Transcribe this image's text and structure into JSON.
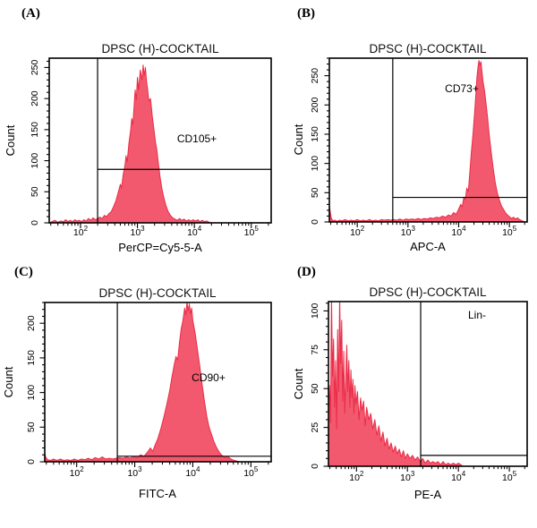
{
  "figure": {
    "background": "#ffffff"
  },
  "chart_data": [
    {
      "type": "area",
      "panel_label": "(A)",
      "title": "DPSC (H)-COCKTAIL",
      "xlabel": "PerCP=Cy5-5-A",
      "ylabel": "Count",
      "xscale": "log",
      "xlim_log10": [
        1.45,
        5.35
      ],
      "xticks_exponents": [
        2,
        3,
        4,
        5
      ],
      "ylim": [
        0,
        265
      ],
      "yticks": [
        0,
        50,
        100,
        150,
        200,
        250
      ],
      "y_minor_step": 10,
      "grid": false,
      "fill_color": "#f2596e",
      "line_color": "#ea2c47",
      "gate": {
        "label": "CD105+",
        "x_log10": 2.3,
        "y_count": 86,
        "label_log10": 4.05,
        "label_count": 130
      },
      "points": [
        [
          1.45,
          0
        ],
        [
          1.5,
          2
        ],
        [
          1.55,
          4
        ],
        [
          1.6,
          1
        ],
        [
          1.65,
          3
        ],
        [
          1.7,
          2
        ],
        [
          1.74,
          5
        ],
        [
          1.78,
          2
        ],
        [
          1.82,
          4
        ],
        [
          1.86,
          2
        ],
        [
          1.9,
          5
        ],
        [
          1.94,
          3
        ],
        [
          1.98,
          4
        ],
        [
          2.02,
          2
        ],
        [
          2.06,
          5
        ],
        [
          2.1,
          3
        ],
        [
          2.14,
          7
        ],
        [
          2.18,
          4
        ],
        [
          2.22,
          8
        ],
        [
          2.26,
          5
        ],
        [
          2.3,
          7
        ],
        [
          2.34,
          9
        ],
        [
          2.38,
          7
        ],
        [
          2.42,
          12
        ],
        [
          2.46,
          10
        ],
        [
          2.5,
          15
        ],
        [
          2.54,
          18
        ],
        [
          2.58,
          26
        ],
        [
          2.62,
          35
        ],
        [
          2.66,
          48
        ],
        [
          2.7,
          62
        ],
        [
          2.72,
          56
        ],
        [
          2.75,
          78
        ],
        [
          2.78,
          92
        ],
        [
          2.8,
          108
        ],
        [
          2.82,
          98
        ],
        [
          2.85,
          128
        ],
        [
          2.88,
          148
        ],
        [
          2.9,
          168
        ],
        [
          2.92,
          158
        ],
        [
          2.94,
          186
        ],
        [
          2.96,
          214
        ],
        [
          2.98,
          198
        ],
        [
          3.0,
          234
        ],
        [
          3.02,
          214
        ],
        [
          3.05,
          246
        ],
        [
          3.08,
          230
        ],
        [
          3.1,
          254
        ],
        [
          3.12,
          237
        ],
        [
          3.14,
          250
        ],
        [
          3.16,
          228
        ],
        [
          3.18,
          214
        ],
        [
          3.2,
          196
        ],
        [
          3.23,
          200
        ],
        [
          3.26,
          172
        ],
        [
          3.29,
          150
        ],
        [
          3.32,
          128
        ],
        [
          3.34,
          118
        ],
        [
          3.37,
          94
        ],
        [
          3.4,
          72
        ],
        [
          3.43,
          55
        ],
        [
          3.46,
          42
        ],
        [
          3.5,
          28
        ],
        [
          3.54,
          18
        ],
        [
          3.58,
          12
        ],
        [
          3.62,
          8
        ],
        [
          3.66,
          6
        ],
        [
          3.7,
          4
        ],
        [
          3.74,
          7
        ],
        [
          3.78,
          4
        ],
        [
          3.82,
          6
        ],
        [
          3.86,
          3
        ],
        [
          3.9,
          5
        ],
        [
          3.94,
          3
        ],
        [
          3.98,
          5
        ],
        [
          4.02,
          3
        ],
        [
          4.06,
          5
        ],
        [
          4.1,
          2
        ],
        [
          4.14,
          4
        ],
        [
          4.18,
          2
        ],
        [
          4.22,
          3
        ],
        [
          4.26,
          1
        ],
        [
          4.3,
          0
        ]
      ]
    },
    {
      "type": "area",
      "panel_label": "(B)",
      "title": "DPSC (H)-COCKTAIL",
      "xlabel": "APC-A",
      "ylabel": "Count",
      "xscale": "log",
      "xlim_log10": [
        1.45,
        5.35
      ],
      "xticks_exponents": [
        2,
        3,
        4,
        5
      ],
      "ylim": [
        0,
        280
      ],
      "yticks": [
        0,
        50,
        100,
        150,
        200,
        250
      ],
      "y_minor_step": 10,
      "grid": false,
      "fill_color": "#f2596e",
      "line_color": "#ea2c47",
      "gate": {
        "label": "CD73+",
        "x_log10": 2.7,
        "y_count": 42,
        "label_log10": 4.06,
        "label_count": 222
      },
      "points": [
        [
          1.45,
          28
        ],
        [
          1.47,
          16
        ],
        [
          1.49,
          6
        ],
        [
          1.52,
          2
        ],
        [
          1.56,
          3
        ],
        [
          1.6,
          1
        ],
        [
          1.65,
          3
        ],
        [
          1.7,
          2
        ],
        [
          1.76,
          4
        ],
        [
          1.82,
          2
        ],
        [
          1.88,
          3
        ],
        [
          1.94,
          2
        ],
        [
          2.0,
          4
        ],
        [
          2.06,
          2
        ],
        [
          2.12,
          3
        ],
        [
          2.18,
          2
        ],
        [
          2.24,
          4
        ],
        [
          2.3,
          2
        ],
        [
          2.36,
          3
        ],
        [
          2.42,
          2
        ],
        [
          2.48,
          4
        ],
        [
          2.54,
          3
        ],
        [
          2.6,
          4
        ],
        [
          2.66,
          3
        ],
        [
          2.72,
          4
        ],
        [
          2.78,
          3
        ],
        [
          2.84,
          5
        ],
        [
          2.9,
          3
        ],
        [
          2.96,
          5
        ],
        [
          3.02,
          4
        ],
        [
          3.08,
          5
        ],
        [
          3.14,
          4
        ],
        [
          3.2,
          6
        ],
        [
          3.26,
          4
        ],
        [
          3.32,
          6
        ],
        [
          3.38,
          5
        ],
        [
          3.44,
          7
        ],
        [
          3.5,
          6
        ],
        [
          3.56,
          8
        ],
        [
          3.62,
          7
        ],
        [
          3.68,
          10
        ],
        [
          3.74,
          8
        ],
        [
          3.8,
          12
        ],
        [
          3.85,
          10
        ],
        [
          3.9,
          16
        ],
        [
          3.95,
          13
        ],
        [
          4.0,
          22
        ],
        [
          4.04,
          30
        ],
        [
          4.07,
          26
        ],
        [
          4.1,
          42
        ],
        [
          4.13,
          38
        ],
        [
          4.16,
          58
        ],
        [
          4.19,
          52
        ],
        [
          4.22,
          85
        ],
        [
          4.25,
          120
        ],
        [
          4.28,
          148
        ],
        [
          4.31,
          182
        ],
        [
          4.34,
          220
        ],
        [
          4.36,
          248
        ],
        [
          4.38,
          264
        ],
        [
          4.4,
          276
        ],
        [
          4.42,
          268
        ],
        [
          4.44,
          274
        ],
        [
          4.46,
          256
        ],
        [
          4.48,
          240
        ],
        [
          4.51,
          224
        ],
        [
          4.54,
          202
        ],
        [
          4.57,
          178
        ],
        [
          4.6,
          150
        ],
        [
          4.64,
          120
        ],
        [
          4.68,
          92
        ],
        [
          4.72,
          68
        ],
        [
          4.76,
          50
        ],
        [
          4.8,
          38
        ],
        [
          4.84,
          28
        ],
        [
          4.88,
          22
        ],
        [
          4.92,
          16
        ],
        [
          4.96,
          12
        ],
        [
          5.0,
          9
        ],
        [
          5.04,
          6
        ],
        [
          5.08,
          8
        ],
        [
          5.12,
          5
        ],
        [
          5.16,
          7
        ],
        [
          5.2,
          4
        ],
        [
          5.25,
          2
        ],
        [
          5.3,
          0
        ]
      ]
    },
    {
      "type": "area",
      "panel_label": "(C)",
      "title": "DPSC (H)-COCKTAIL",
      "xlabel": "FITC-A",
      "ylabel": "Count",
      "xscale": "log",
      "xlim_log10": [
        1.45,
        5.35
      ],
      "xticks_exponents": [
        2,
        3,
        4,
        5
      ],
      "ylim": [
        0,
        230
      ],
      "yticks": [
        0,
        50,
        100,
        150,
        200
      ],
      "y_minor_step": 10,
      "grid": false,
      "fill_color": "#f2596e",
      "line_color": "#ea2c47",
      "gate": {
        "label": "CD90+",
        "x_log10": 2.7,
        "y_count": 8,
        "label_log10": 4.27,
        "label_count": 117
      },
      "points": [
        [
          1.45,
          12
        ],
        [
          1.47,
          6
        ],
        [
          1.5,
          3
        ],
        [
          1.55,
          2
        ],
        [
          1.6,
          4
        ],
        [
          1.66,
          2
        ],
        [
          1.72,
          4
        ],
        [
          1.78,
          2
        ],
        [
          1.84,
          3
        ],
        [
          1.9,
          2
        ],
        [
          1.96,
          4
        ],
        [
          2.02,
          2
        ],
        [
          2.08,
          4
        ],
        [
          2.14,
          3
        ],
        [
          2.2,
          5
        ],
        [
          2.26,
          3
        ],
        [
          2.32,
          6
        ],
        [
          2.38,
          4
        ],
        [
          2.44,
          7
        ],
        [
          2.5,
          4
        ],
        [
          2.56,
          5
        ],
        [
          2.62,
          4
        ],
        [
          2.68,
          5
        ],
        [
          2.74,
          6
        ],
        [
          2.8,
          5
        ],
        [
          2.86,
          7
        ],
        [
          2.92,
          5
        ],
        [
          2.98,
          8
        ],
        [
          3.04,
          6
        ],
        [
          3.1,
          10
        ],
        [
          3.16,
          8
        ],
        [
          3.22,
          14
        ],
        [
          3.27,
          20
        ],
        [
          3.31,
          15
        ],
        [
          3.35,
          24
        ],
        [
          3.4,
          34
        ],
        [
          3.45,
          48
        ],
        [
          3.5,
          64
        ],
        [
          3.55,
          82
        ],
        [
          3.6,
          102
        ],
        [
          3.64,
          122
        ],
        [
          3.68,
          140
        ],
        [
          3.71,
          152
        ],
        [
          3.74,
          147
        ],
        [
          3.77,
          172
        ],
        [
          3.8,
          192
        ],
        [
          3.83,
          204
        ],
        [
          3.86,
          222
        ],
        [
          3.88,
          212
        ],
        [
          3.9,
          231
        ],
        [
          3.92,
          218
        ],
        [
          3.94,
          228
        ],
        [
          3.96,
          214
        ],
        [
          3.98,
          222
        ],
        [
          4.0,
          204
        ],
        [
          4.04,
          186
        ],
        [
          4.08,
          162
        ],
        [
          4.12,
          138
        ],
        [
          4.16,
          112
        ],
        [
          4.2,
          88
        ],
        [
          4.24,
          66
        ],
        [
          4.28,
          50
        ],
        [
          4.32,
          40
        ],
        [
          4.36,
          30
        ],
        [
          4.4,
          22
        ],
        [
          4.44,
          16
        ],
        [
          4.48,
          11
        ],
        [
          4.52,
          8
        ],
        [
          4.56,
          6
        ],
        [
          4.6,
          8
        ],
        [
          4.64,
          5
        ],
        [
          4.68,
          3
        ],
        [
          4.72,
          2
        ],
        [
          4.76,
          1
        ],
        [
          4.8,
          0
        ]
      ]
    },
    {
      "type": "area",
      "panel_label": "(D)",
      "title": "DPSC (H)-COCKTAIL",
      "xlabel": "PE-A",
      "ylabel": "Count",
      "xscale": "log",
      "xlim_log10": [
        1.45,
        5.35
      ],
      "xticks_exponents": [
        2,
        3,
        4,
        5
      ],
      "ylim": [
        0,
        106
      ],
      "yticks": [
        0,
        25,
        50,
        75,
        100
      ],
      "y_minor_step": 5,
      "grid": false,
      "fill_color": "#f2596e",
      "line_color": "#ea2c47",
      "gate": {
        "label": "Lin-",
        "x_log10": 3.26,
        "y_count": 7,
        "label_log10": 4.36,
        "label_count": 95
      },
      "points": [
        [
          1.45,
          40
        ],
        [
          1.47,
          52
        ],
        [
          1.49,
          28
        ],
        [
          1.51,
          110
        ],
        [
          1.53,
          58
        ],
        [
          1.55,
          82
        ],
        [
          1.57,
          38
        ],
        [
          1.59,
          68
        ],
        [
          1.61,
          24
        ],
        [
          1.63,
          88
        ],
        [
          1.65,
          48
        ],
        [
          1.67,
          110
        ],
        [
          1.69,
          66
        ],
        [
          1.71,
          94
        ],
        [
          1.73,
          42
        ],
        [
          1.75,
          74
        ],
        [
          1.77,
          34
        ],
        [
          1.79,
          58
        ],
        [
          1.81,
          78
        ],
        [
          1.83,
          48
        ],
        [
          1.85,
          68
        ],
        [
          1.87,
          38
        ],
        [
          1.89,
          62
        ],
        [
          1.91,
          44
        ],
        [
          1.93,
          56
        ],
        [
          1.95,
          34
        ],
        [
          1.97,
          52
        ],
        [
          1.99,
          40
        ],
        [
          2.02,
          48
        ],
        [
          2.05,
          30
        ],
        [
          2.08,
          44
        ],
        [
          2.11,
          36
        ],
        [
          2.14,
          42
        ],
        [
          2.17,
          26
        ],
        [
          2.2,
          38
        ],
        [
          2.24,
          30
        ],
        [
          2.28,
          34
        ],
        [
          2.32,
          24
        ],
        [
          2.36,
          30
        ],
        [
          2.4,
          20
        ],
        [
          2.44,
          26
        ],
        [
          2.48,
          16
        ],
        [
          2.52,
          22
        ],
        [
          2.56,
          13
        ],
        [
          2.6,
          18
        ],
        [
          2.64,
          11
        ],
        [
          2.68,
          15
        ],
        [
          2.72,
          9
        ],
        [
          2.76,
          13
        ],
        [
          2.8,
          8
        ],
        [
          2.84,
          11
        ],
        [
          2.88,
          6
        ],
        [
          2.92,
          10
        ],
        [
          2.96,
          5
        ],
        [
          3.0,
          8
        ],
        [
          3.05,
          5
        ],
        [
          3.1,
          7
        ],
        [
          3.15,
          4
        ],
        [
          3.2,
          6
        ],
        [
          3.25,
          3
        ],
        [
          3.3,
          5
        ],
        [
          3.35,
          2
        ],
        [
          3.4,
          4
        ],
        [
          3.45,
          2
        ],
        [
          3.5,
          3
        ],
        [
          3.55,
          2
        ],
        [
          3.6,
          3
        ],
        [
          3.65,
          1
        ],
        [
          3.7,
          3
        ],
        [
          3.75,
          1
        ],
        [
          3.8,
          2
        ],
        [
          3.85,
          1
        ],
        [
          3.9,
          2
        ],
        [
          3.95,
          1
        ],
        [
          4.0,
          2
        ],
        [
          4.05,
          1
        ],
        [
          4.08,
          0
        ]
      ]
    }
  ]
}
